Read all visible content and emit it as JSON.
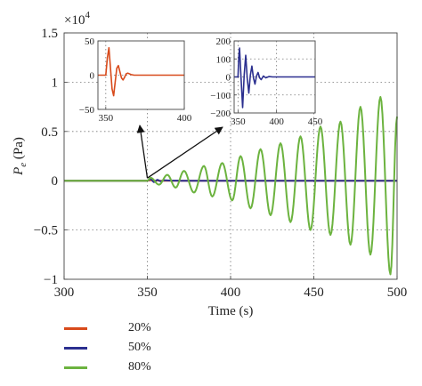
{
  "chart_data": [
    {
      "type": "line",
      "title": "",
      "xlabel": "Time (s)",
      "ylabel": "P",
      "ylabel_sub": "e",
      "ylabel_unit": " (Pa)",
      "multiplier_base": "×10",
      "multiplier_exp": "4",
      "xlim": [
        300,
        500
      ],
      "ylim": [
        -1.0,
        1.5
      ],
      "x_ticks": [
        "300",
        "350",
        "400",
        "450",
        "500"
      ],
      "y_ticks": [
        "−1",
        "−0.5",
        "0",
        "0.5",
        "1",
        "1.5"
      ],
      "grid": "dotted",
      "legend_position": "below",
      "series": [
        {
          "name": "20%",
          "color": "#d84a1b",
          "x": [
            300,
            350,
            352,
            354,
            356,
            358,
            360,
            365,
            370,
            380,
            400,
            500
          ],
          "y": [
            0,
            0,
            0.005,
            -0.003,
            0.002,
            -0.001,
            0,
            0,
            0,
            0,
            0,
            0
          ]
        },
        {
          "name": "50%",
          "color": "#2b2f8f",
          "x": [
            300,
            350,
            352,
            354,
            356,
            358,
            360,
            365,
            370,
            380,
            400,
            500
          ],
          "y": [
            0,
            0,
            0.018,
            -0.014,
            0.009,
            -0.006,
            0.004,
            0.001,
            0,
            0,
            0,
            0
          ]
        },
        {
          "name": "80%",
          "color": "#6cb33f",
          "x": [
            300,
            350,
            352,
            357,
            362,
            367,
            372,
            378,
            384,
            389,
            395,
            401,
            406,
            412,
            418,
            424,
            430,
            436,
            442,
            448,
            454,
            460,
            466,
            472,
            478,
            484,
            490,
            496,
            500
          ],
          "y": [
            0,
            0,
            0.03,
            -0.04,
            0.06,
            -0.07,
            0.1,
            -0.12,
            0.15,
            -0.16,
            0.18,
            -0.2,
            0.25,
            -0.28,
            0.32,
            -0.35,
            0.38,
            -0.42,
            0.45,
            -0.5,
            0.55,
            -0.55,
            0.6,
            -0.65,
            0.75,
            -0.75,
            0.85,
            -0.95,
            0.65
          ]
        }
      ]
    },
    {
      "type": "line",
      "title": "",
      "xlim": [
        345,
        400
      ],
      "ylim": [
        -50,
        50
      ],
      "x_ticks": [
        "350",
        "400"
      ],
      "y_ticks": [
        "−50",
        "0",
        "50"
      ],
      "grid": "dotted",
      "series": [
        {
          "name": "20%",
          "color": "#d84a1b",
          "x": [
            345,
            350,
            351,
            352,
            353,
            354,
            355,
            356,
            357,
            358,
            359,
            360,
            361,
            362,
            363,
            364,
            366,
            368,
            372,
            400
          ],
          "y": [
            0,
            0,
            25,
            40,
            10,
            -20,
            -30,
            -10,
            10,
            14,
            5,
            -4,
            -7,
            -3,
            2,
            3,
            1,
            0,
            0,
            0
          ]
        }
      ]
    },
    {
      "type": "line",
      "title": "",
      "xlim": [
        345,
        450
      ],
      "ylim": [
        -200,
        200
      ],
      "x_ticks": [
        "350",
        "400",
        "450"
      ],
      "y_ticks": [
        "−200",
        "−100",
        "0",
        "100",
        "200"
      ],
      "grid": "dotted",
      "series": [
        {
          "name": "50%",
          "color": "#2b2f8f",
          "x": [
            345,
            350,
            351,
            352,
            354,
            356,
            358,
            360,
            362,
            364,
            366,
            368,
            370,
            372,
            374,
            376,
            378,
            380,
            383,
            386,
            390,
            395,
            450
          ],
          "y": [
            0,
            0,
            110,
            160,
            -10,
            -170,
            10,
            120,
            -10,
            -90,
            10,
            60,
            -5,
            -40,
            5,
            25,
            -5,
            -15,
            5,
            -5,
            2,
            0,
            0
          ]
        }
      ]
    }
  ]
}
